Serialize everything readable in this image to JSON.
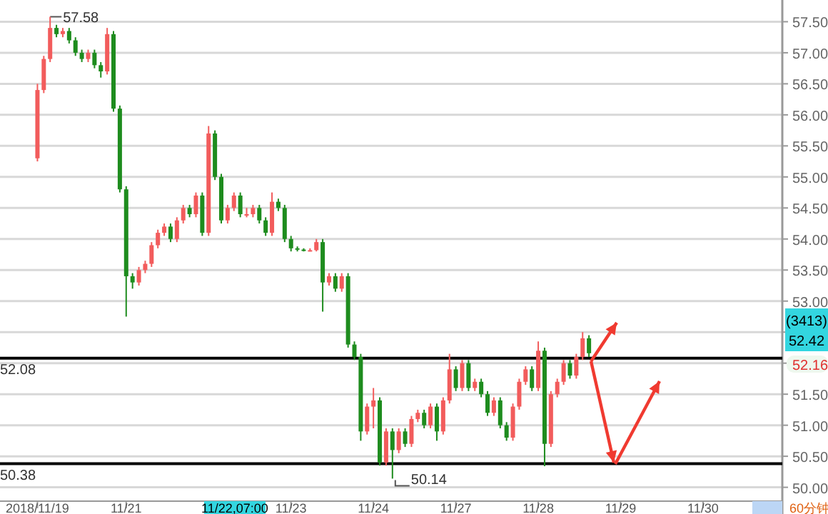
{
  "chart_data": {
    "type": "candlestick",
    "categories": [
      "2018/11/19",
      null,
      null,
      null,
      null,
      null,
      null,
      null,
      null,
      null,
      null,
      null,
      null,
      null,
      "11/21",
      null,
      null,
      null,
      null,
      null,
      null,
      null,
      null,
      null,
      null,
      null,
      null,
      null,
      null,
      null,
      null,
      null,
      null,
      null,
      null,
      null,
      null,
      null,
      null,
      null,
      "11/23",
      null,
      null,
      null,
      null,
      null,
      null,
      null,
      null,
      null,
      null,
      null,
      null,
      "11/24",
      null,
      null,
      null,
      null,
      null,
      null,
      null,
      null,
      null,
      null,
      null,
      null,
      "11/27",
      null,
      null,
      null,
      null,
      null,
      null,
      null,
      null,
      null,
      null,
      null,
      null,
      "11/28",
      null,
      null,
      null,
      null,
      null,
      null,
      null,
      null,
      null,
      null,
      null,
      null,
      "11/29",
      null,
      null,
      null,
      null,
      null,
      null,
      null,
      null,
      null,
      null,
      null,
      null,
      "11/30",
      null,
      null,
      null,
      null,
      null,
      null,
      null,
      null,
      null,
      null,
      null,
      null
    ],
    "ohlc": [
      [
        55.3,
        56.5,
        55.25,
        56.4
      ],
      [
        56.4,
        56.95,
        56.35,
        56.9
      ],
      [
        56.9,
        57.58,
        56.85,
        57.4
      ],
      [
        57.4,
        57.45,
        57.25,
        57.3
      ],
      [
        57.3,
        57.4,
        57.25,
        57.35
      ],
      [
        57.35,
        57.4,
        57.15,
        57.2
      ],
      [
        57.2,
        57.25,
        56.95,
        57.0
      ],
      [
        57.0,
        57.05,
        56.85,
        56.9
      ],
      [
        56.9,
        57.05,
        56.85,
        57.0
      ],
      [
        57.0,
        57.05,
        56.75,
        56.8
      ],
      [
        56.8,
        56.85,
        56.6,
        56.7
      ],
      [
        56.7,
        57.4,
        56.65,
        57.3
      ],
      [
        57.3,
        57.35,
        56.05,
        56.1
      ],
      [
        56.1,
        56.15,
        54.75,
        54.8
      ],
      [
        54.8,
        54.85,
        52.75,
        53.4
      ],
      [
        53.4,
        53.45,
        53.2,
        53.3
      ],
      [
        53.3,
        53.55,
        53.25,
        53.5
      ],
      [
        53.5,
        53.65,
        53.45,
        53.6
      ],
      [
        53.6,
        53.95,
        53.55,
        53.9
      ],
      [
        53.9,
        54.15,
        53.85,
        54.1
      ],
      [
        54.1,
        54.25,
        54.05,
        54.2
      ],
      [
        54.2,
        54.25,
        53.95,
        54.0
      ],
      [
        54.0,
        54.35,
        53.95,
        54.3
      ],
      [
        54.3,
        54.55,
        54.25,
        54.5
      ],
      [
        54.5,
        54.55,
        54.35,
        54.4
      ],
      [
        54.4,
        54.75,
        54.35,
        54.7
      ],
      [
        54.7,
        54.75,
        54.05,
        54.1
      ],
      [
        54.1,
        55.82,
        54.05,
        55.7
      ],
      [
        55.7,
        55.75,
        54.95,
        55.0
      ],
      [
        55.0,
        55.05,
        54.25,
        54.3
      ],
      [
        54.3,
        54.55,
        54.25,
        54.5
      ],
      [
        54.5,
        54.75,
        54.45,
        54.7
      ],
      [
        54.7,
        54.75,
        54.35,
        54.4
      ],
      [
        54.4,
        54.5,
        54.35,
        54.4
      ],
      [
        54.4,
        54.55,
        54.35,
        54.5
      ],
      [
        54.5,
        54.55,
        54.25,
        54.3
      ],
      [
        54.3,
        54.35,
        54.05,
        54.1
      ],
      [
        54.1,
        54.75,
        54.05,
        54.6
      ],
      [
        54.6,
        54.65,
        54.45,
        54.5
      ],
      [
        54.5,
        54.55,
        53.95,
        54.0
      ],
      [
        54.0,
        54.05,
        53.8,
        53.85
      ],
      [
        53.85,
        53.88,
        53.8,
        53.83
      ],
      [
        53.83,
        53.85,
        53.8,
        53.82
      ],
      [
        53.82,
        53.85,
        53.8,
        53.82
      ],
      [
        53.82,
        54.0,
        53.8,
        53.95
      ],
      [
        53.95,
        54.0,
        52.83,
        53.3
      ],
      [
        53.3,
        53.45,
        53.25,
        53.4
      ],
      [
        53.4,
        53.45,
        53.15,
        53.2
      ],
      [
        53.2,
        53.45,
        53.15,
        53.4
      ],
      [
        53.4,
        53.45,
        52.25,
        52.3
      ],
      [
        52.3,
        52.35,
        52.05,
        52.1
      ],
      [
        52.1,
        52.15,
        50.75,
        50.9
      ],
      [
        50.9,
        51.35,
        50.85,
        51.3
      ],
      [
        51.3,
        51.6,
        50.95,
        51.4
      ],
      [
        51.4,
        51.45,
        50.35,
        50.4
      ],
      [
        50.4,
        50.95,
        50.35,
        50.9
      ],
      [
        50.9,
        50.95,
        50.14,
        50.6
      ],
      [
        50.6,
        50.95,
        50.55,
        50.9
      ],
      [
        50.9,
        50.95,
        50.65,
        50.7
      ],
      [
        50.7,
        51.15,
        50.65,
        51.1
      ],
      [
        51.1,
        51.25,
        51.05,
        51.2
      ],
      [
        51.2,
        51.25,
        50.95,
        51.0
      ],
      [
        51.0,
        51.35,
        50.95,
        51.3
      ],
      [
        51.3,
        51.35,
        50.75,
        50.9
      ],
      [
        50.9,
        51.45,
        50.85,
        51.4
      ],
      [
        51.4,
        52.15,
        51.35,
        51.9
      ],
      [
        51.9,
        51.95,
        51.55,
        51.6
      ],
      [
        51.6,
        52.05,
        51.55,
        52.0
      ],
      [
        52.0,
        52.05,
        51.55,
        51.6
      ],
      [
        51.6,
        51.75,
        51.55,
        51.7
      ],
      [
        51.7,
        51.75,
        51.45,
        51.5
      ],
      [
        51.5,
        51.55,
        51.15,
        51.2
      ],
      [
        51.2,
        51.45,
        51.15,
        51.4
      ],
      [
        51.4,
        51.45,
        50.95,
        51.0
      ],
      [
        51.0,
        51.05,
        50.75,
        50.8
      ],
      [
        50.8,
        51.35,
        50.75,
        51.3
      ],
      [
        51.3,
        51.75,
        51.25,
        51.7
      ],
      [
        51.7,
        51.95,
        51.65,
        51.9
      ],
      [
        51.9,
        51.95,
        51.55,
        51.6
      ],
      [
        51.6,
        52.35,
        51.55,
        52.2
      ],
      [
        52.2,
        52.25,
        50.34,
        50.7
      ],
      [
        50.7,
        51.55,
        50.65,
        51.5
      ],
      [
        51.5,
        51.75,
        51.45,
        51.7
      ],
      [
        51.7,
        52.05,
        51.65,
        52.0
      ],
      [
        52.0,
        52.05,
        51.75,
        51.8
      ],
      [
        51.8,
        52.15,
        51.75,
        52.1
      ],
      [
        52.1,
        52.5,
        52.05,
        52.4
      ],
      [
        52.4,
        52.45,
        52.1,
        52.16
      ],
      null,
      null,
      null,
      null,
      null,
      null,
      null,
      null,
      null,
      null,
      null,
      null,
      null,
      null,
      null,
      null,
      null,
      null,
      null,
      null,
      null,
      null,
      null,
      null,
      null,
      null,
      null,
      null,
      null,
      null
    ],
    "ylim": [
      49.8,
      57.85
    ],
    "yticks": [
      {
        "value": 50,
        "label": "50.00"
      },
      {
        "value": 50.5,
        "label": "50.50"
      },
      {
        "value": 51,
        "label": "51.00"
      },
      {
        "value": 51.5,
        "label": "51.50"
      },
      {
        "value": 52,
        "label": null
      },
      {
        "value": 52.5,
        "label": null
      },
      {
        "value": 53,
        "label": "53.00"
      },
      {
        "value": 53.5,
        "label": "53.50"
      },
      {
        "value": 54,
        "label": "54.00"
      },
      {
        "value": 54.5,
        "label": "54.50"
      },
      {
        "value": 55,
        "label": "55.00"
      },
      {
        "value": 55.5,
        "label": "55.50"
      },
      {
        "value": 56,
        "label": "56.00"
      },
      {
        "value": 56.5,
        "label": "56.50"
      },
      {
        "value": 57,
        "label": "57.00"
      },
      {
        "value": 57.5,
        "label": "57.50"
      }
    ],
    "grid": "y",
    "ref_lines": [
      {
        "axis": "y",
        "value": 52.08,
        "label": "52.08",
        "color": "#000000"
      },
      {
        "axis": "y",
        "value": 50.38,
        "label": "50.38",
        "color": "#000000"
      }
    ],
    "annotations": [
      "57.58",
      "50.14",
      "11/22,07:00",
      "(3413)",
      "52.42",
      "52.16",
      "60分钟"
    ]
  }
}
